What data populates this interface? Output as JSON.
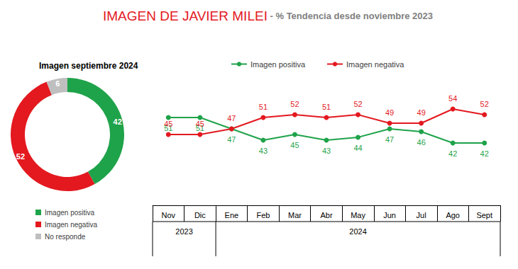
{
  "chart_data": [
    {
      "type": "pie",
      "title": "Imagen septiembre 2024",
      "categories": [
        "Imagen positiva",
        "Imagen negativa",
        "No responde"
      ],
      "values": [
        42,
        52,
        6
      ],
      "colors": [
        "#1fa34a",
        "#e3191f",
        "#bfbfbf"
      ],
      "data_labels": true,
      "legend": "bottom-left"
    },
    {
      "type": "line",
      "title": "IMAGEN DE JAVIER MILEI",
      "subtitle": "- % Tendencia desde noviembre 2023",
      "categories": [
        "Nov",
        "Dic",
        "Ene",
        "Feb",
        "Mar",
        "Abr",
        "May",
        "Jun",
        "Jul",
        "Ago",
        "Sept"
      ],
      "x_groups": [
        {
          "label": "2023",
          "from": "Nov",
          "to": "Dic"
        },
        {
          "label": "2024",
          "from": "Ene",
          "to": "Sept"
        }
      ],
      "series": [
        {
          "name": "Imagen positiva",
          "color": "#1fa34a",
          "values": [
            51,
            51,
            47,
            43,
            45,
            43,
            44,
            47,
            46,
            42,
            42
          ]
        },
        {
          "name": "Imagen negativa",
          "color": "#e3191f",
          "values": [
            45,
            45,
            47,
            51,
            52,
            51,
            52,
            49,
            49,
            54,
            52
          ]
        }
      ],
      "ylim": [
        20,
        65
      ],
      "grid": false,
      "data_labels": true,
      "tick_labels": "x",
      "marker": "circle",
      "legend": "top"
    }
  ]
}
